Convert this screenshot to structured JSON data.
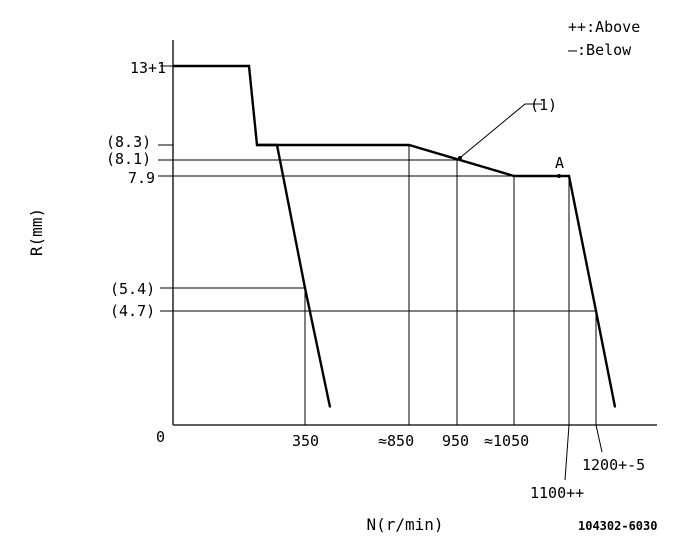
{
  "chart_data": {
    "type": "line",
    "xlabel": "N(r/min)",
    "ylabel": "R(mm)",
    "drawing_code": "104302-6030",
    "legend": [
      {
        "symbol": "++",
        "text": ":Above"
      },
      {
        "symbol": "—",
        "text": ":Below"
      }
    ],
    "x_ticks": [
      {
        "value": 0,
        "label": "0"
      },
      {
        "value": 350,
        "label": "350"
      },
      {
        "value": 850,
        "label": "≈850"
      },
      {
        "value": 950,
        "label": "950"
      },
      {
        "value": 1050,
        "label": "≈1050"
      },
      {
        "value": 1100,
        "label": "1100++"
      },
      {
        "value": 1200,
        "label": "1200+-5"
      }
    ],
    "y_ticks": [
      {
        "value": 13,
        "label": "13+1"
      },
      {
        "value": 8.3,
        "label": "(8.3)"
      },
      {
        "value": 8.1,
        "label": "(8.1)"
      },
      {
        "value": 7.9,
        "label": "7.9"
      },
      {
        "value": 5.4,
        "label": "(5.4)"
      },
      {
        "value": 4.7,
        "label": "(4.7)"
      }
    ],
    "annotations": [
      {
        "text": "(1)"
      },
      {
        "text": "A"
      }
    ],
    "series": [
      {
        "points": [
          {
            "x": 0,
            "y": 13
          },
          {
            "x": 150,
            "y": 13
          },
          {
            "x": 170,
            "y": 8.3
          },
          {
            "x": 850,
            "y": 8.3
          },
          {
            "x": 1050,
            "y": 7.9
          },
          {
            "x": 1100,
            "y": 7.9
          },
          {
            "x": 1150,
            "y": 4.7
          },
          {
            "x": 1180,
            "y": 1.2
          }
        ]
      },
      {
        "points": [
          {
            "x": 170,
            "y": 8.3
          },
          {
            "x": 320,
            "y": 8.3
          },
          {
            "x": 350,
            "y": 5.4
          },
          {
            "x": 370,
            "y": 1.2
          }
        ]
      }
    ]
  }
}
